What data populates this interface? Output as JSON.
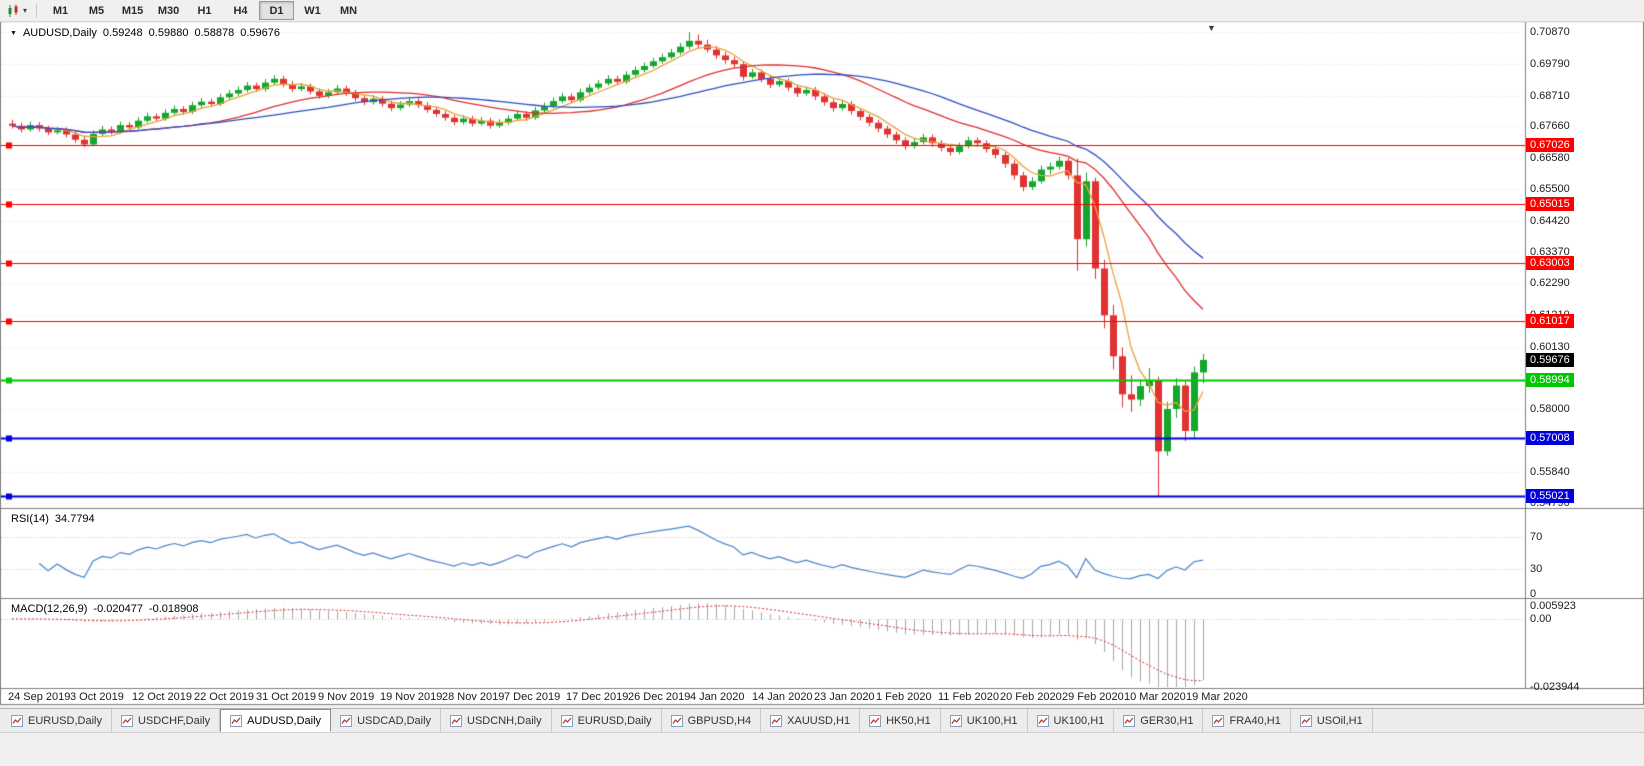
{
  "toolbar": {
    "timeframes": [
      "M1",
      "M5",
      "M15",
      "M30",
      "H1",
      "H4",
      "D1",
      "W1",
      "MN"
    ],
    "active_timeframe": "D1"
  },
  "chart": {
    "symbol": "AUDUSD,Daily",
    "ohlc": {
      "open": "0.59248",
      "high": "0.59880",
      "low": "0.58878",
      "close": "0.59676"
    }
  },
  "indicators": {
    "rsi": {
      "name": "RSI(14)",
      "value": "34.7794",
      "axis_labels": [
        "70",
        "30",
        "0"
      ]
    },
    "macd": {
      "name": "MACD(12,26,9)",
      "main_value": "-0.020477",
      "signal_value": "-0.018908",
      "axis_labels": [
        "0.005923",
        "0.00",
        "-0.023944"
      ]
    }
  },
  "icons": {
    "title_marker": "▼",
    "dropdown_arrow": "▾",
    "shift_marker": "▼"
  },
  "tabs": [
    {
      "label": "EURUSD,Daily",
      "active": false
    },
    {
      "label": "USDCHF,Daily",
      "active": false
    },
    {
      "label": "AUDUSD,Daily",
      "active": true
    },
    {
      "label": "USDCAD,Daily",
      "active": false
    },
    {
      "label": "USDCNH,Daily",
      "active": false
    },
    {
      "label": "EURUSD,Daily",
      "active": false
    },
    {
      "label": "GBPUSD,H4",
      "active": false
    },
    {
      "label": "XAUUSD,H1",
      "active": false
    },
    {
      "label": "HK50,H1",
      "active": false
    },
    {
      "label": "UK100,H1",
      "active": false
    },
    {
      "label": "UK100,H1",
      "active": false
    },
    {
      "label": "GER30,H1",
      "active": false
    },
    {
      "label": "FRA40,H1",
      "active": false
    },
    {
      "label": "USOil,H1",
      "active": false
    }
  ],
  "chart_data": {
    "type": "candlestick",
    "symbol": "AUDUSD",
    "timeframe": "Daily",
    "price_range": [
      0.5465,
      0.7112
    ],
    "y_axis_ticks": [
      "0.70870",
      "0.69790",
      "0.68710",
      "0.67660",
      "0.66580",
      "0.65500",
      "0.64420",
      "0.63370",
      "0.62290",
      "0.61210",
      "0.60130",
      "0.58000",
      "0.55840",
      "0.54790"
    ],
    "x_axis_dates": [
      "24 Sep 2019",
      "3 Oct 2019",
      "12 Oct 2019",
      "22 Oct 2019",
      "31 Oct 2019",
      "9 Nov 2019",
      "19 Nov 2019",
      "28 Nov 2019",
      "7 Dec 2019",
      "17 Dec 2019",
      "26 Dec 2019",
      "4 Jan 2020",
      "14 Jan 2020",
      "23 Jan 2020",
      "1 Feb 2020",
      "11 Feb 2020",
      "20 Feb 2020",
      "29 Feb 2020",
      "10 Mar 2020",
      "19 Mar 2020"
    ],
    "horizontal_lines": [
      {
        "price": 0.67026,
        "label": "0.67026",
        "color": "#ff0000",
        "width": 1
      },
      {
        "price": 0.65015,
        "label": "0.65015",
        "color": "#ff0000",
        "width": 1
      },
      {
        "price": 0.63003,
        "label": "0.63003",
        "color": "#ff0000",
        "width": 1
      },
      {
        "price": 0.61017,
        "label": "0.61017",
        "color": "#ff0000",
        "width": 1
      },
      {
        "price": 0.58994,
        "label": "0.58994",
        "color": "#00c800",
        "width": 2
      },
      {
        "price": 0.57008,
        "label": "0.57008",
        "color": "#0000dc",
        "width": 2
      },
      {
        "price": 0.55021,
        "label": "0.55021",
        "color": "#0000dc",
        "width": 2
      }
    ],
    "current_price": {
      "value": 0.59676,
      "label": "0.59676",
      "badge_color": "#000000"
    },
    "candle_colors": {
      "up": "#15a62c",
      "down": "#e03232"
    },
    "moving_averages": [
      {
        "period": 5,
        "color": "#e8a33d"
      },
      {
        "period": 20,
        "color": "#e03030"
      },
      {
        "period": 30,
        "color": "#3050c0"
      }
    ],
    "rsi": {
      "period": 14,
      "color": "#4a86c8",
      "range": [
        0,
        100
      ],
      "levels": [
        70,
        30
      ]
    },
    "macd": {
      "fast": 12,
      "slow": 26,
      "signal": 9,
      "histogram_color": "#a8a8a8",
      "signal_color": "#e03030",
      "range": [
        -0.023944,
        0.005923
      ]
    },
    "candles": [
      [
        0.6775,
        0.6788,
        0.6758,
        0.6768
      ],
      [
        0.6768,
        0.6778,
        0.6745,
        0.6755
      ],
      [
        0.6755,
        0.6782,
        0.6748,
        0.677
      ],
      [
        0.677,
        0.678,
        0.6748,
        0.6758
      ],
      [
        0.6758,
        0.6768,
        0.6735,
        0.6745
      ],
      [
        0.6745,
        0.6764,
        0.6738,
        0.6752
      ],
      [
        0.6752,
        0.6762,
        0.6728,
        0.6738
      ],
      [
        0.6738,
        0.675,
        0.671,
        0.672
      ],
      [
        0.672,
        0.6732,
        0.6695,
        0.6704
      ],
      [
        0.6704,
        0.6752,
        0.6698,
        0.674
      ],
      [
        0.674,
        0.6767,
        0.6732,
        0.6755
      ],
      [
        0.6755,
        0.6765,
        0.6738,
        0.6748
      ],
      [
        0.6748,
        0.6782,
        0.674,
        0.677
      ],
      [
        0.677,
        0.678,
        0.6752,
        0.6762
      ],
      [
        0.6762,
        0.6797,
        0.6755,
        0.6785
      ],
      [
        0.6785,
        0.6812,
        0.6778,
        0.68
      ],
      [
        0.68,
        0.681,
        0.6782,
        0.6792
      ],
      [
        0.6792,
        0.6824,
        0.6785,
        0.6812
      ],
      [
        0.6812,
        0.6837,
        0.6805,
        0.6825
      ],
      [
        0.6825,
        0.6835,
        0.6805,
        0.6815
      ],
      [
        0.6815,
        0.685,
        0.6808,
        0.6838
      ],
      [
        0.6838,
        0.6862,
        0.683,
        0.685
      ],
      [
        0.685,
        0.686,
        0.6832,
        0.6842
      ],
      [
        0.6842,
        0.6877,
        0.6835,
        0.6865
      ],
      [
        0.6865,
        0.689,
        0.6858,
        0.6878
      ],
      [
        0.6878,
        0.6902,
        0.687,
        0.689
      ],
      [
        0.689,
        0.6917,
        0.6882,
        0.6905
      ],
      [
        0.6905,
        0.6915,
        0.6883,
        0.6893
      ],
      [
        0.6893,
        0.6927,
        0.6885,
        0.6915
      ],
      [
        0.6915,
        0.694,
        0.6908,
        0.6928
      ],
      [
        0.6928,
        0.6938,
        0.69,
        0.691
      ],
      [
        0.691,
        0.692,
        0.6883,
        0.6893
      ],
      [
        0.6893,
        0.6914,
        0.6885,
        0.6902
      ],
      [
        0.6902,
        0.6912,
        0.6875,
        0.6885
      ],
      [
        0.6885,
        0.6895,
        0.686,
        0.687
      ],
      [
        0.687,
        0.6894,
        0.6862,
        0.6882
      ],
      [
        0.6882,
        0.6907,
        0.6875,
        0.6895
      ],
      [
        0.6895,
        0.6905,
        0.687,
        0.688
      ],
      [
        0.688,
        0.689,
        0.6852,
        0.6862
      ],
      [
        0.6862,
        0.6872,
        0.6838,
        0.6848
      ],
      [
        0.6848,
        0.6872,
        0.684,
        0.686
      ],
      [
        0.686,
        0.687,
        0.6833,
        0.6843
      ],
      [
        0.6843,
        0.6853,
        0.6818,
        0.6828
      ],
      [
        0.6828,
        0.6852,
        0.682,
        0.684
      ],
      [
        0.684,
        0.6864,
        0.6832,
        0.6852
      ],
      [
        0.6852,
        0.6862,
        0.6828,
        0.6838
      ],
      [
        0.6838,
        0.6848,
        0.6812,
        0.6822
      ],
      [
        0.6822,
        0.6832,
        0.6798,
        0.6808
      ],
      [
        0.6808,
        0.6818,
        0.6785,
        0.6795
      ],
      [
        0.6795,
        0.6805,
        0.677,
        0.678
      ],
      [
        0.678,
        0.6804,
        0.6772,
        0.6792
      ],
      [
        0.6792,
        0.6802,
        0.6765,
        0.6775
      ],
      [
        0.6775,
        0.6797,
        0.6768,
        0.6785
      ],
      [
        0.6785,
        0.6795,
        0.6758,
        0.6768
      ],
      [
        0.6768,
        0.679,
        0.676,
        0.6778
      ],
      [
        0.6778,
        0.6804,
        0.677,
        0.6792
      ],
      [
        0.6792,
        0.682,
        0.6785,
        0.6808
      ],
      [
        0.6808,
        0.6818,
        0.6785,
        0.6795
      ],
      [
        0.6795,
        0.6832,
        0.6788,
        0.682
      ],
      [
        0.682,
        0.6847,
        0.6812,
        0.6835
      ],
      [
        0.6835,
        0.6864,
        0.6828,
        0.6852
      ],
      [
        0.6852,
        0.688,
        0.6845,
        0.6868
      ],
      [
        0.6868,
        0.6878,
        0.6845,
        0.6855
      ],
      [
        0.6855,
        0.6894,
        0.6848,
        0.6882
      ],
      [
        0.6882,
        0.691,
        0.6875,
        0.6898
      ],
      [
        0.6898,
        0.6924,
        0.689,
        0.6912
      ],
      [
        0.6912,
        0.694,
        0.6905,
        0.6928
      ],
      [
        0.6928,
        0.6938,
        0.6908,
        0.6918
      ],
      [
        0.6918,
        0.6954,
        0.691,
        0.6942
      ],
      [
        0.6942,
        0.697,
        0.6935,
        0.6958
      ],
      [
        0.6958,
        0.6984,
        0.695,
        0.6972
      ],
      [
        0.6972,
        0.7,
        0.6965,
        0.6988
      ],
      [
        0.6988,
        0.7014,
        0.698,
        0.7002
      ],
      [
        0.7002,
        0.703,
        0.6995,
        0.7018
      ],
      [
        0.7018,
        0.705,
        0.701,
        0.7038
      ],
      [
        0.7038,
        0.7087,
        0.7028,
        0.7058
      ],
      [
        0.7058,
        0.708,
        0.7032,
        0.7045
      ],
      [
        0.7045,
        0.7062,
        0.7018,
        0.7028
      ],
      [
        0.7028,
        0.704,
        0.6996,
        0.7008
      ],
      [
        0.7008,
        0.702,
        0.698,
        0.6992
      ],
      [
        0.6992,
        0.7004,
        0.6966,
        0.6978
      ],
      [
        0.6978,
        0.6988,
        0.6922,
        0.6935
      ],
      [
        0.6935,
        0.6962,
        0.6928,
        0.695
      ],
      [
        0.695,
        0.696,
        0.6916,
        0.6928
      ],
      [
        0.6928,
        0.6938,
        0.6896,
        0.6908
      ],
      [
        0.6908,
        0.6932,
        0.69,
        0.692
      ],
      [
        0.692,
        0.693,
        0.6886,
        0.6898
      ],
      [
        0.6898,
        0.6908,
        0.6866,
        0.6878
      ],
      [
        0.6878,
        0.6902,
        0.687,
        0.689
      ],
      [
        0.689,
        0.69,
        0.6856,
        0.6868
      ],
      [
        0.6868,
        0.6878,
        0.6836,
        0.6848
      ],
      [
        0.6848,
        0.6858,
        0.6816,
        0.6828
      ],
      [
        0.6828,
        0.6854,
        0.682,
        0.6842
      ],
      [
        0.6842,
        0.6852,
        0.6806,
        0.6818
      ],
      [
        0.6818,
        0.6828,
        0.6786,
        0.6798
      ],
      [
        0.6798,
        0.6808,
        0.6766,
        0.6778
      ],
      [
        0.6778,
        0.6788,
        0.6746,
        0.6758
      ],
      [
        0.6758,
        0.6768,
        0.6726,
        0.6738
      ],
      [
        0.6738,
        0.6748,
        0.6706,
        0.6718
      ],
      [
        0.6718,
        0.6728,
        0.6686,
        0.6698
      ],
      [
        0.6698,
        0.6724,
        0.669,
        0.6712
      ],
      [
        0.6712,
        0.674,
        0.6704,
        0.6728
      ],
      [
        0.6728,
        0.6738,
        0.6696,
        0.6708
      ],
      [
        0.6708,
        0.6718,
        0.668,
        0.6692
      ],
      [
        0.6692,
        0.6702,
        0.6666,
        0.6678
      ],
      [
        0.6678,
        0.671,
        0.667,
        0.6698
      ],
      [
        0.6698,
        0.673,
        0.669,
        0.6718
      ],
      [
        0.6718,
        0.6728,
        0.6696,
        0.6708
      ],
      [
        0.6708,
        0.6718,
        0.6676,
        0.6688
      ],
      [
        0.6688,
        0.6698,
        0.6656,
        0.6668
      ],
      [
        0.6668,
        0.6678,
        0.6624,
        0.6638
      ],
      [
        0.6638,
        0.665,
        0.6584,
        0.6598
      ],
      [
        0.6598,
        0.661,
        0.6544,
        0.6558
      ],
      [
        0.6558,
        0.6592,
        0.6548,
        0.6578
      ],
      [
        0.6578,
        0.6632,
        0.657,
        0.6618
      ],
      [
        0.6618,
        0.6642,
        0.6602,
        0.6628
      ],
      [
        0.6628,
        0.6662,
        0.6618,
        0.6648
      ],
      [
        0.6648,
        0.6658,
        0.6584,
        0.6598
      ],
      [
        0.6598,
        0.6655,
        0.6272,
        0.638
      ],
      [
        0.638,
        0.6608,
        0.6355,
        0.6578
      ],
      [
        0.6578,
        0.659,
        0.6245,
        0.628
      ],
      [
        0.628,
        0.631,
        0.6075,
        0.612
      ],
      [
        0.612,
        0.6155,
        0.5935,
        0.598
      ],
      [
        0.598,
        0.601,
        0.5805,
        0.585
      ],
      [
        0.585,
        0.5915,
        0.579,
        0.5832
      ],
      [
        0.5832,
        0.59,
        0.581,
        0.5878
      ],
      [
        0.5878,
        0.594,
        0.5855,
        0.5898
      ],
      [
        0.5898,
        0.591,
        0.5502,
        0.5655
      ],
      [
        0.5655,
        0.5825,
        0.564,
        0.58
      ],
      [
        0.58,
        0.5905,
        0.577,
        0.588
      ],
      [
        0.588,
        0.5895,
        0.569,
        0.5725
      ],
      [
        0.5725,
        0.5945,
        0.57,
        0.5925
      ],
      [
        0.59248,
        0.5988,
        0.58878,
        0.59676
      ]
    ]
  }
}
